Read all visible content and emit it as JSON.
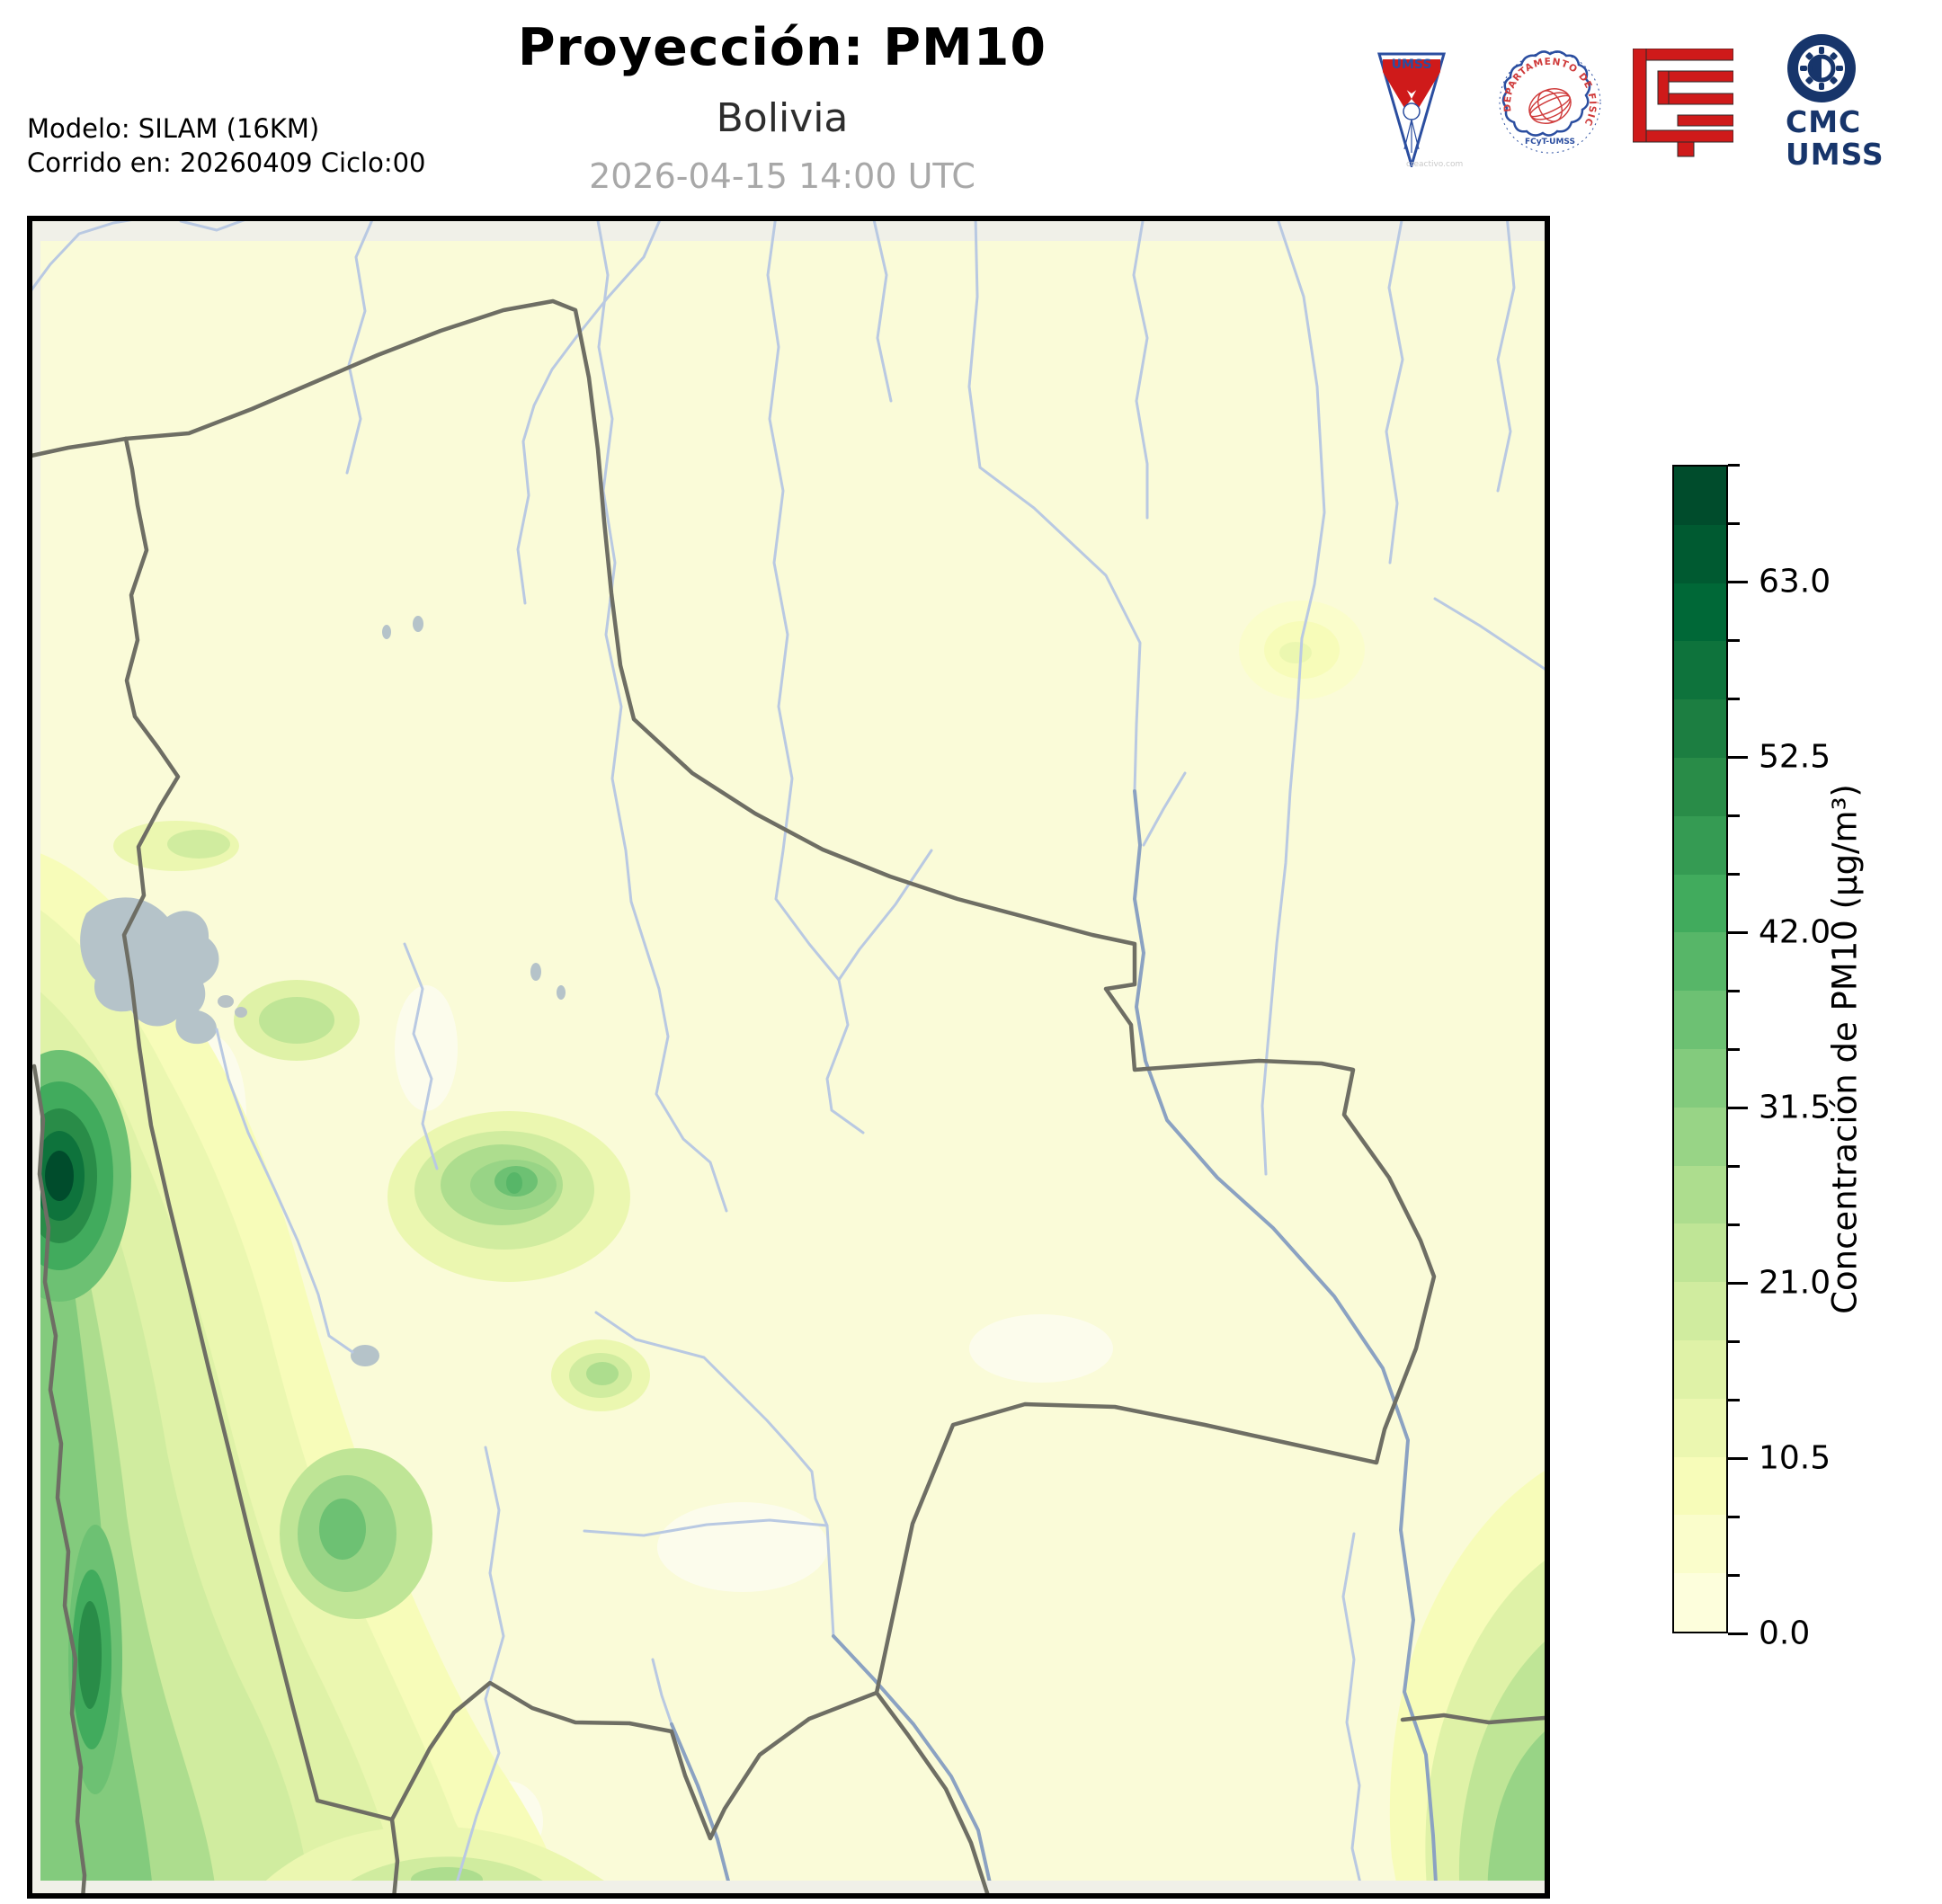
{
  "header": {
    "title": "Proyección: PM10",
    "subtitle": "Bolivia",
    "timestamp": "2026-04-15 14:00 UTC",
    "model_line1": "Modelo: SILAM (16KM)",
    "model_line2": "Corrido en: 20260409 Ciclo:00"
  },
  "logos": {
    "pennant_label": "UMSS",
    "pennant_watermark": "creactivo.com",
    "seal_label": "DEPARTAMENTO DE FÍSICA",
    "seal_sublabel": "FCyT-UMSS",
    "cmc_line1": "CMC",
    "cmc_line2": "UMSS",
    "navy": "#17356b",
    "red": "#cf1a1a"
  },
  "colorbar": {
    "label": "Concentración de PM10 (µg/m³)",
    "min": 0,
    "max": 70,
    "step": 3.5,
    "major_ticks": [
      {
        "value": 0,
        "label": "0.0"
      },
      {
        "value": 10.5,
        "label": "10.5"
      },
      {
        "value": 21,
        "label": "21.0"
      },
      {
        "value": 31.5,
        "label": "31.5"
      },
      {
        "value": 42,
        "label": "42.0"
      },
      {
        "value": 52.5,
        "label": "52.5"
      },
      {
        "value": 63,
        "label": "63.0"
      }
    ],
    "colors": [
      "#fdfedc",
      "#fafdcb",
      "#f7fcb9",
      "#ebf7b0",
      "#dff2a7",
      "#d0ec9f",
      "#bfe596",
      "#addd8e",
      "#98d486",
      "#83cb7d",
      "#6dc173",
      "#57b668",
      "#41ab5d",
      "#359b53",
      "#298c48",
      "#1c7e41",
      "#0e733c",
      "#006837",
      "#005a31",
      "#004c2c"
    ]
  },
  "map": {
    "region": "Bolivia",
    "colors": {
      "background": "#fafbd8",
      "outside_strip": "#f0f0e8",
      "white_patch": "#fcfcec",
      "border": "#6e6e64",
      "river": "#b9c9e2",
      "river_dark": "#8ba2c2",
      "lake": "#b5c3c9",
      "urban": "#b8c2c6"
    }
  }
}
